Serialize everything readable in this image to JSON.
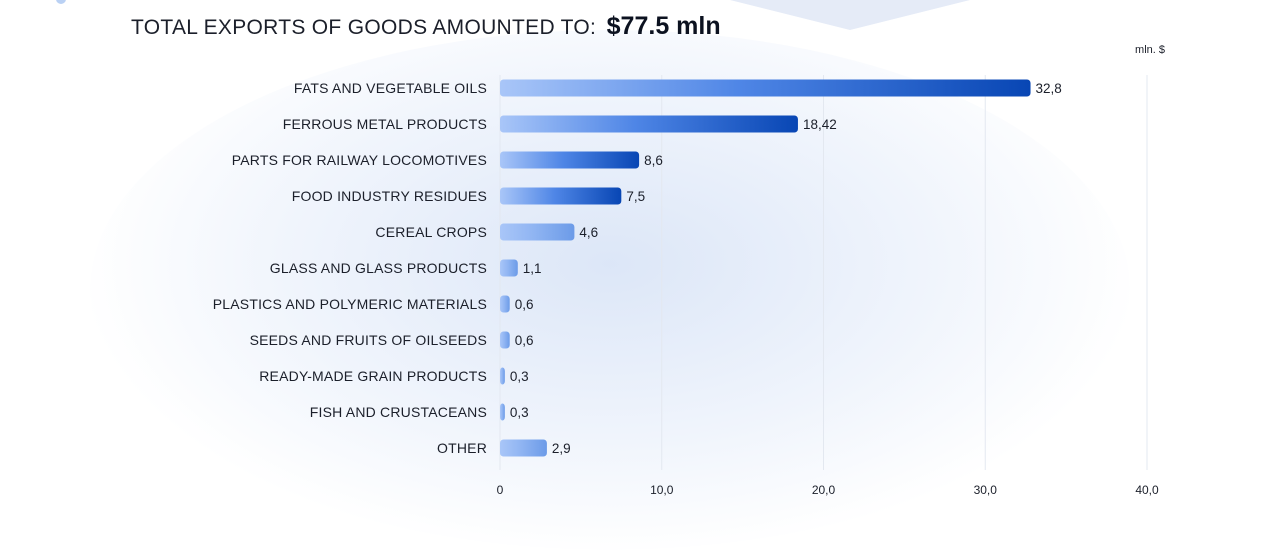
{
  "header": {
    "prefix": "TOTAL EXPORTS OF GOODS AMOUNTED TO:",
    "total": "$77.5 mln"
  },
  "chart_data": {
    "type": "bar",
    "orientation": "horizontal",
    "title": "TOTAL EXPORTS OF GOODS AMOUNTED TO: $77.5 mln",
    "unit": "mln. $",
    "categories": [
      "FATS AND VEGETABLE OILS",
      "FERROUS METAL PRODUCTS",
      "PARTS FOR RAILWAY LOCOMOTIVES",
      "FOOD INDUSTRY RESIDUES",
      "CEREAL CROPS",
      "GLASS AND GLASS PRODUCTS",
      "PLASTICS AND POLYMERIC MATERIALS",
      "SEEDS AND FRUITS OF OILSEEDS",
      "READY-MADE GRAIN PRODUCTS",
      "FISH AND CRUSTACEANS",
      "OTHER"
    ],
    "values": [
      32.8,
      18.42,
      8.6,
      7.5,
      4.6,
      1.1,
      0.6,
      0.6,
      0.3,
      0.3,
      2.9
    ],
    "value_labels": [
      "32,8",
      "18,42",
      "8,6",
      "7,5",
      "4,6",
      "1,1",
      "0,6",
      "0,6",
      "0,3",
      "0,3",
      "2,9"
    ],
    "xlim": [
      0,
      40
    ],
    "x_ticks": [
      0,
      10,
      20,
      30,
      40
    ],
    "x_tick_labels": [
      "0",
      "10,0",
      "20,0",
      "30,0",
      "40,0"
    ],
    "grid": true,
    "colors": {
      "bar_light": "#a9c6f8",
      "bar_dark": "#0846b4",
      "grid": "#e3e8f0"
    }
  }
}
